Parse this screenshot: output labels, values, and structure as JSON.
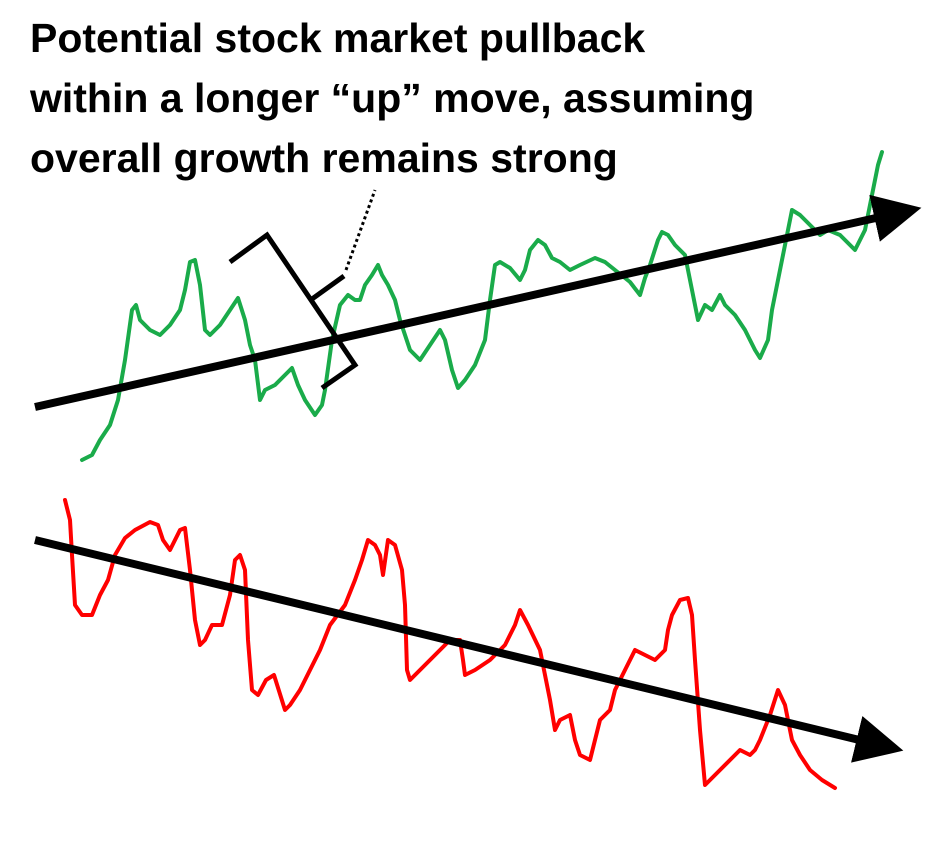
{
  "title": {
    "lines": [
      "Potential stock market pullback",
      "within a longer “up” move, assuming",
      "overall growth remains strong"
    ]
  },
  "colors": {
    "uptrend_line": "#1aab4a",
    "downtrend_line": "#ff0000",
    "trend_arrow": "#000000",
    "bracket": "#000000"
  },
  "elements": {
    "uptrend": "upward trend arrow with green price line oscillating around it",
    "downtrend": "downward trend arrow with red price line oscillating around it",
    "annotation": "bracket marking pullback, dotted leader to title"
  }
}
